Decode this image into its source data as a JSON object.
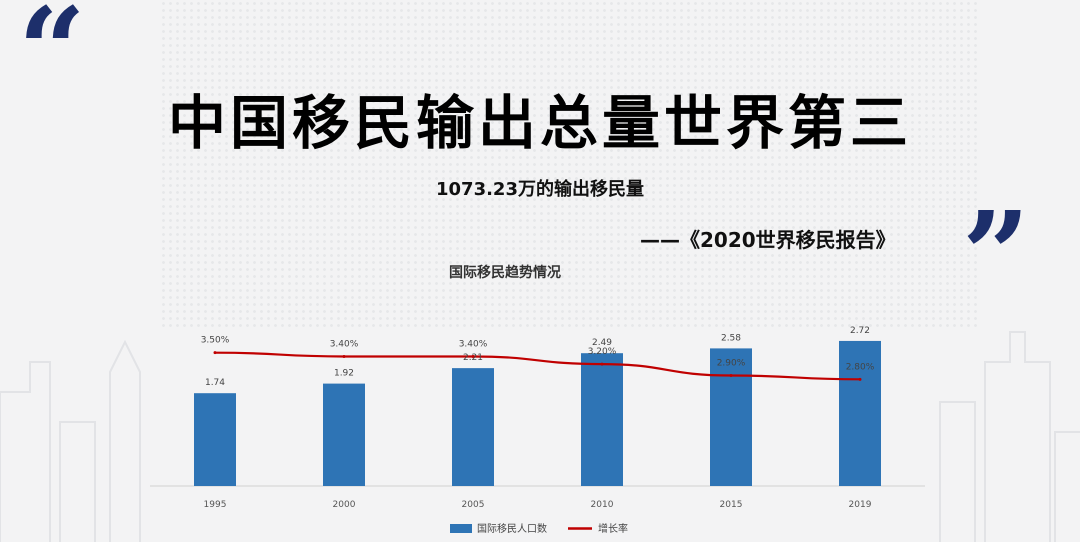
{
  "slide": {
    "title": "中国移民输出总量世界第三",
    "subtitle": "1073.23万的输出移民量",
    "source": "——《2020世界移民报告》",
    "quote_open": "“",
    "quote_close": "”",
    "accent_color": "#1d2f6b"
  },
  "chart_data": {
    "type": "bar",
    "title": "国际移民趋势情况",
    "categories": [
      "1995",
      "2000",
      "2005",
      "2010",
      "2015",
      "2019"
    ],
    "series": [
      {
        "name": "国际移民人口数",
        "kind": "bar",
        "color": "#2e74b5",
        "values": [
          1.74,
          1.92,
          2.21,
          2.49,
          2.58,
          2.72
        ],
        "labels": [
          "1.74",
          "1.92",
          "2.21",
          "2.49",
          "2.58",
          "2.72"
        ]
      },
      {
        "name": "增长率",
        "kind": "line",
        "color": "#c00000",
        "values": [
          3.5,
          3.4,
          3.4,
          3.2,
          2.9,
          2.8
        ],
        "labels": [
          "3.50%",
          "3.40%",
          "3.40%",
          "3.20%",
          "2.90%",
          "2.80%"
        ]
      }
    ],
    "bar_ylim": [
      0,
      3
    ],
    "line_ylim": [
      0,
      4.2
    ],
    "grid": false,
    "legend": "bottom"
  }
}
